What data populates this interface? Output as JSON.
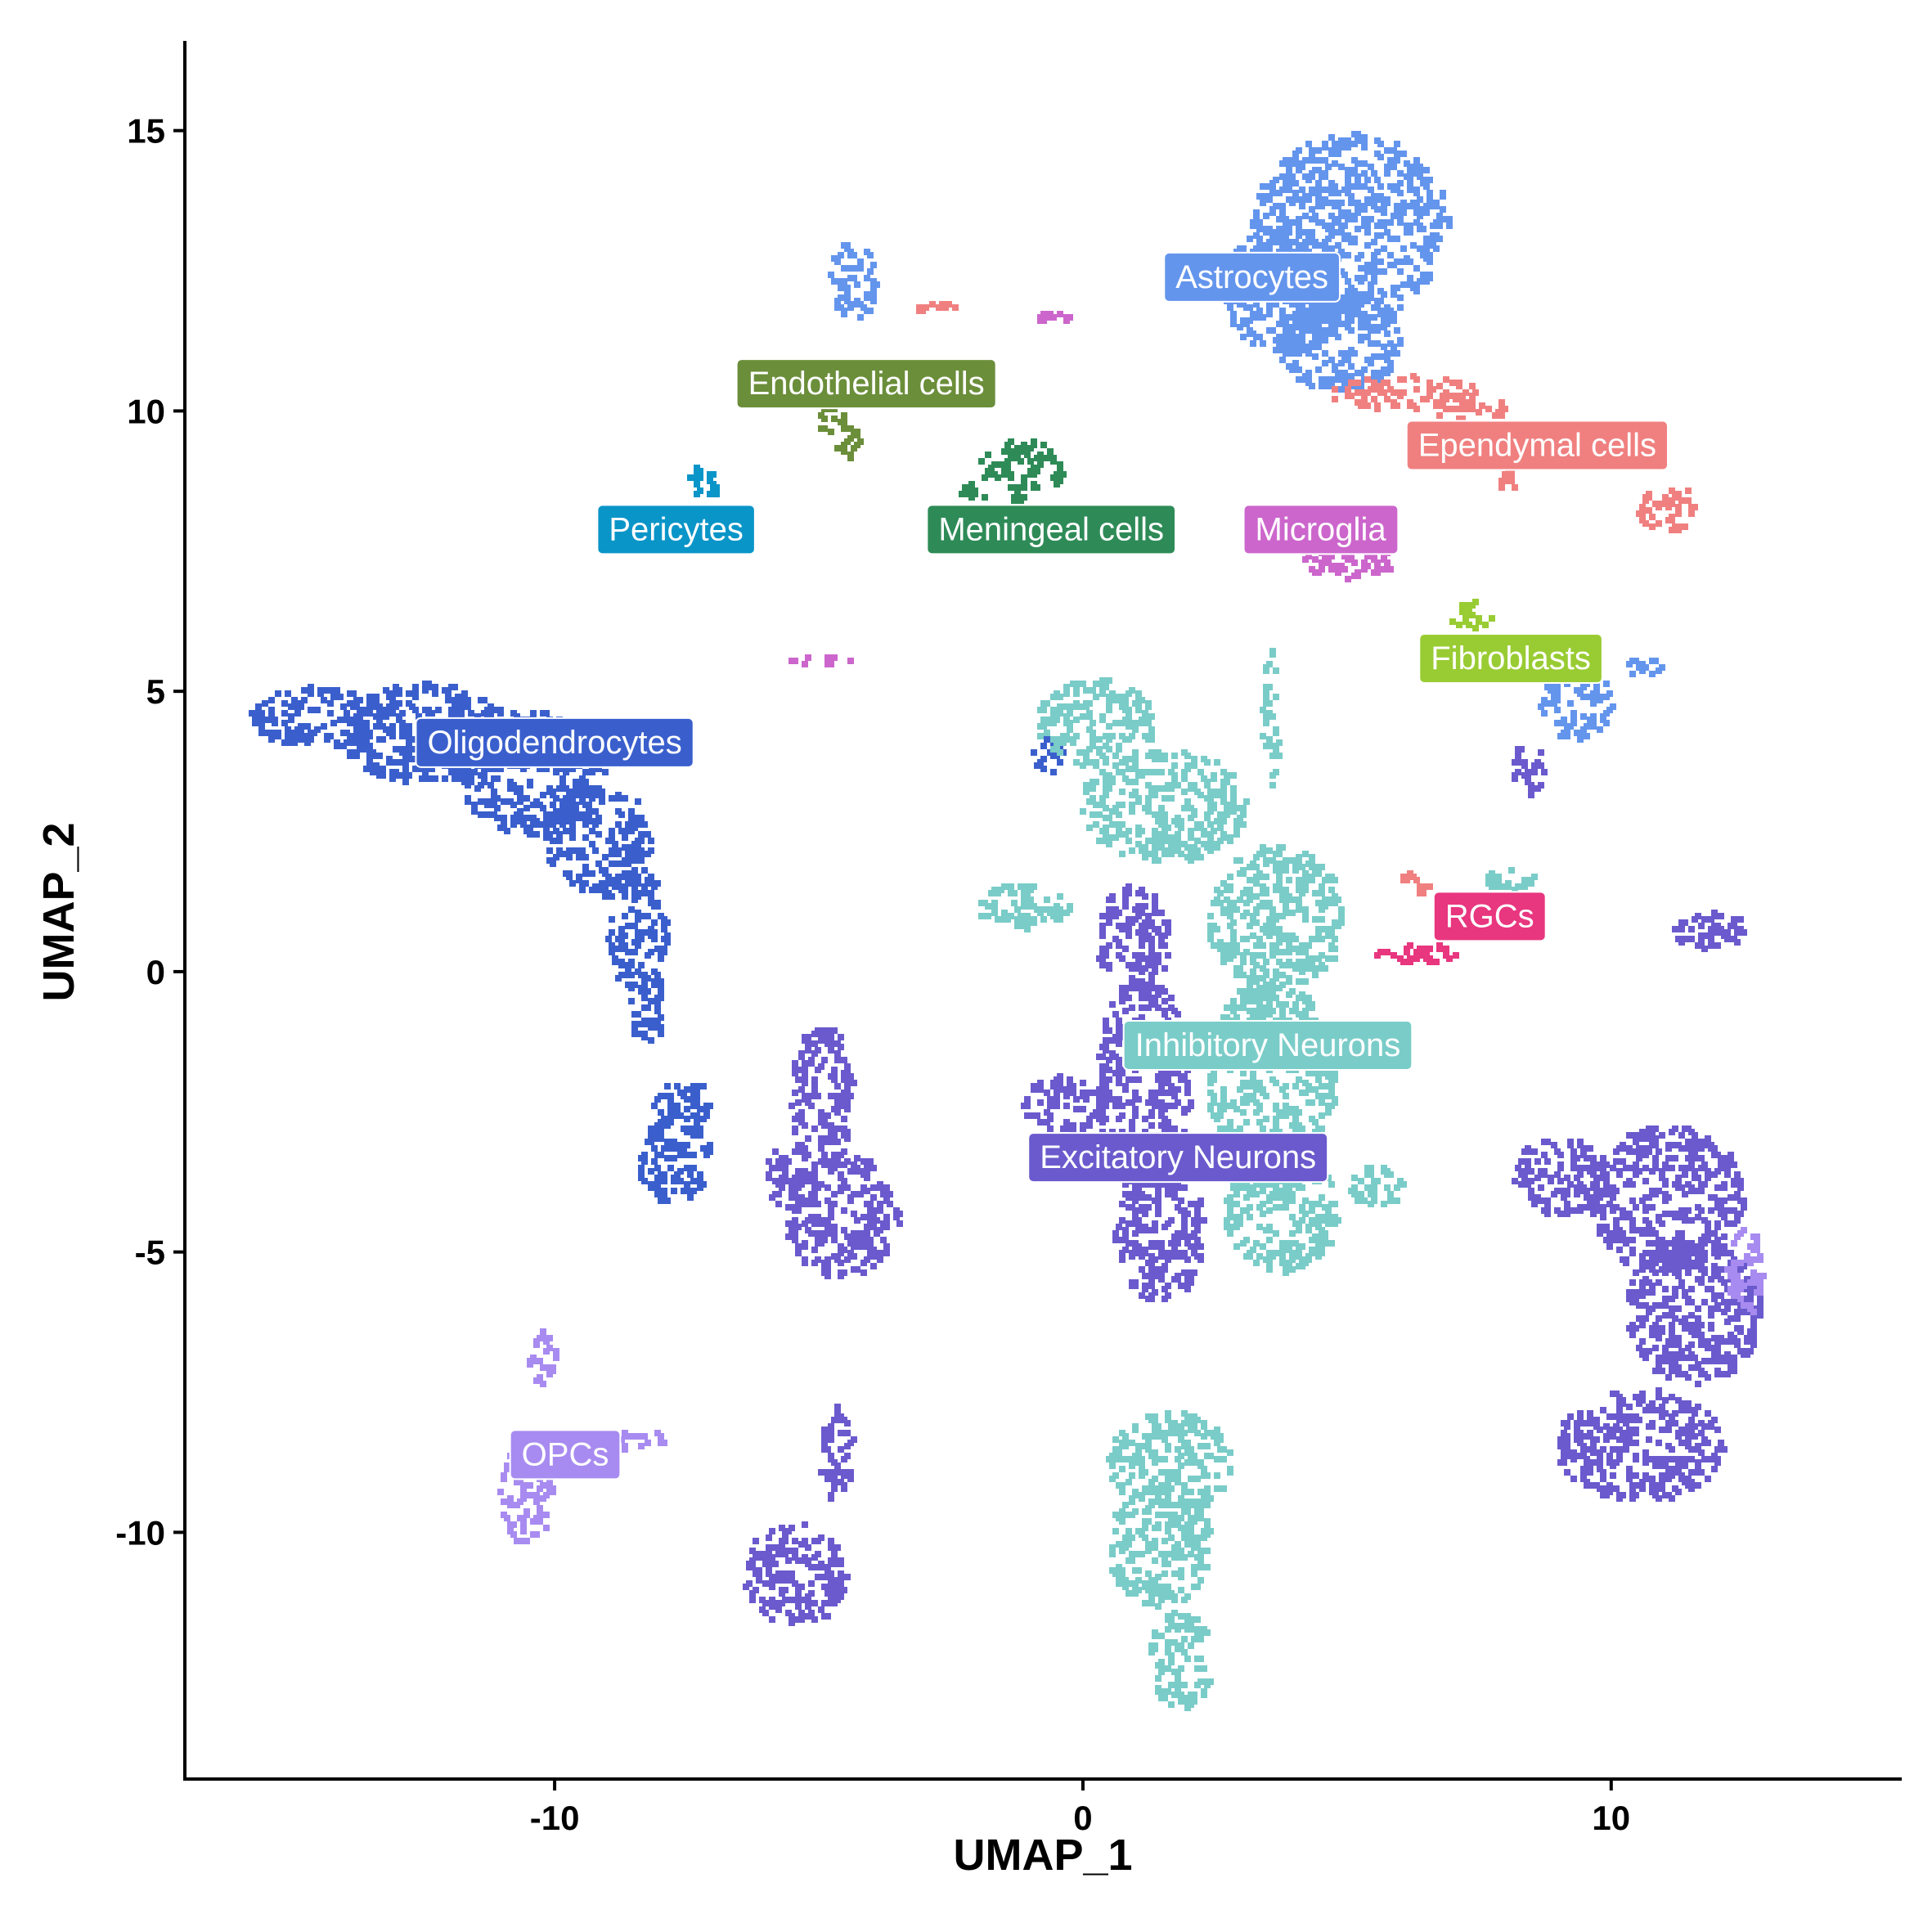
{
  "chart_data": {
    "type": "scatter",
    "title": "",
    "xlabel": "UMAP_1",
    "ylabel": "UMAP_2",
    "xlim": [
      -17,
      15.5
    ],
    "ylim": [
      -14.4,
      16.6
    ],
    "x_ticks": [
      -10,
      0,
      10
    ],
    "y_ticks": [
      -10,
      -5,
      0,
      5,
      10,
      15
    ],
    "x_tick_labels": [
      "-10",
      "0",
      "10"
    ],
    "y_tick_labels": [
      "-10",
      "-5",
      "0",
      "5",
      "10",
      "15"
    ],
    "grid": false,
    "legend": "none",
    "series": [
      {
        "name": "Astrocytes",
        "color": "#6495ED",
        "label_pos": [
          3.2,
          12.4
        ],
        "blobs": [
          {
            "x": 5.0,
            "y": 13.3,
            "rx": 1.9,
            "ry": 1.7
          },
          {
            "x": 3.8,
            "y": 12.2,
            "rx": 1.2,
            "ry": 1.1
          },
          {
            "x": 4.8,
            "y": 11.3,
            "rx": 1.2,
            "ry": 0.9
          },
          {
            "x": -4.4,
            "y": 12.4,
            "rx": 0.45,
            "ry": 0.7
          },
          {
            "x": 9.3,
            "y": 4.8,
            "rx": 0.7,
            "ry": 0.6
          },
          {
            "x": 10.5,
            "y": 5.5,
            "rx": 0.5,
            "ry": 0.15
          }
        ]
      },
      {
        "name": "Ependymal cells",
        "color": "#F08080",
        "label_pos": [
          8.6,
          9.4
        ],
        "blobs": [
          {
            "x": 6.0,
            "y": 10.4,
            "rx": 1.4,
            "ry": 0.3
          },
          {
            "x": 7.3,
            "y": 10.1,
            "rx": 0.7,
            "ry": 0.2
          },
          {
            "x": 11.0,
            "y": 8.3,
            "rx": 0.6,
            "ry": 0.4
          },
          {
            "x": 8.0,
            "y": 8.8,
            "rx": 0.2,
            "ry": 0.2
          },
          {
            "x": -2.8,
            "y": 11.9,
            "rx": 0.4,
            "ry": 0.08
          },
          {
            "x": 6.2,
            "y": 1.6,
            "rx": 0.3,
            "ry": 0.2
          }
        ]
      },
      {
        "name": "Endothelial cells",
        "color": "#6B8E3A",
        "label_pos": [
          -4.1,
          10.5
        ],
        "blobs": [
          {
            "x": -4.8,
            "y": 10.0,
            "rx": 0.35,
            "ry": 0.35
          },
          {
            "x": -4.5,
            "y": 9.5,
            "rx": 0.25,
            "ry": 0.3
          }
        ]
      },
      {
        "name": "Pericytes",
        "color": "#0A95C8",
        "label_pos": [
          -7.7,
          7.9
        ],
        "blobs": [
          {
            "x": -7.2,
            "y": 8.8,
            "rx": 0.3,
            "ry": 0.3
          }
        ]
      },
      {
        "name": "Meningeal cells",
        "color": "#2E8B57",
        "label_pos": [
          -0.6,
          7.9
        ],
        "blobs": [
          {
            "x": -1.2,
            "y": 9.0,
            "rx": 0.8,
            "ry": 0.55
          },
          {
            "x": -2.2,
            "y": 8.6,
            "rx": 0.3,
            "ry": 0.15
          }
        ]
      },
      {
        "name": "Microglia",
        "color": "#CC66CC",
        "label_pos": [
          4.5,
          7.9
        ],
        "blobs": [
          {
            "x": 5.0,
            "y": 7.4,
            "rx": 0.9,
            "ry": 0.35
          },
          {
            "x": -5.0,
            "y": 5.6,
            "rx": 0.6,
            "ry": 0.1
          },
          {
            "x": -0.6,
            "y": 11.7,
            "rx": 0.3,
            "ry": 0.1
          }
        ]
      },
      {
        "name": "Fibroblasts",
        "color": "#99CC33",
        "label_pos": [
          8.1,
          5.6
        ],
        "blobs": [
          {
            "x": 7.3,
            "y": 6.4,
            "rx": 0.45,
            "ry": 0.25
          }
        ]
      },
      {
        "name": "Oligodendrocytes",
        "color": "#3A5FCD",
        "label_pos": [
          -10.0,
          4.1
        ],
        "blobs": [
          {
            "x": -14.5,
            "y": 4.6,
            "rx": 1.3,
            "ry": 0.55
          },
          {
            "x": -12.5,
            "y": 4.3,
            "rx": 1.6,
            "ry": 0.9
          },
          {
            "x": -10.5,
            "y": 3.6,
            "rx": 1.4,
            "ry": 1.1
          },
          {
            "x": -9.2,
            "y": 2.4,
            "rx": 1.0,
            "ry": 1.0
          },
          {
            "x": -8.5,
            "y": 0.8,
            "rx": 0.6,
            "ry": 1.1
          },
          {
            "x": -8.3,
            "y": -0.6,
            "rx": 0.35,
            "ry": 0.7
          },
          {
            "x": -7.8,
            "y": -3.3,
            "rx": 0.7,
            "ry": 0.8
          },
          {
            "x": -7.6,
            "y": -2.3,
            "rx": 0.6,
            "ry": 0.4
          },
          {
            "x": -0.7,
            "y": 3.9,
            "rx": 0.3,
            "ry": 0.3
          }
        ]
      },
      {
        "name": "Inhibitory Neurons",
        "color": "#7ACCC8",
        "label_pos": [
          3.5,
          -1.3
        ],
        "blobs": [
          {
            "x": 0.2,
            "y": 4.5,
            "rx": 1.1,
            "ry": 0.8
          },
          {
            "x": 1.5,
            "y": 3.0,
            "rx": 1.6,
            "ry": 1.0
          },
          {
            "x": 3.6,
            "y": 1.0,
            "rx": 1.3,
            "ry": 1.3
          },
          {
            "x": 3.5,
            "y": -2.0,
            "rx": 1.2,
            "ry": 2.0
          },
          {
            "x": 3.7,
            "y": -4.2,
            "rx": 1.1,
            "ry": 1.1
          },
          {
            "x": 5.5,
            "y": -3.8,
            "rx": 0.5,
            "ry": 0.4
          },
          {
            "x": -1.2,
            "y": 1.2,
            "rx": 0.9,
            "ry": 0.4
          },
          {
            "x": 3.5,
            "y": 4.6,
            "rx": 0.15,
            "ry": 1.3
          },
          {
            "x": 1.6,
            "y": -8.7,
            "rx": 1.2,
            "ry": 0.9
          },
          {
            "x": 1.4,
            "y": -10.2,
            "rx": 1.0,
            "ry": 1.1
          },
          {
            "x": 1.8,
            "y": -12.2,
            "rx": 0.6,
            "ry": 0.9
          },
          {
            "x": 8.1,
            "y": 1.7,
            "rx": 0.6,
            "ry": 0.2
          }
        ]
      },
      {
        "name": "Excitatory Neurons",
        "color": "#6A5ACD",
        "label_pos": [
          1.8,
          -3.3
        ],
        "blobs": [
          {
            "x": 0.9,
            "y": 0.6,
            "rx": 0.7,
            "ry": 1.0
          },
          {
            "x": 1.1,
            "y": -2.0,
            "rx": 0.9,
            "ry": 2.0
          },
          {
            "x": 1.4,
            "y": -4.6,
            "rx": 0.9,
            "ry": 1.2
          },
          {
            "x": -0.4,
            "y": -2.3,
            "rx": 0.8,
            "ry": 0.5
          },
          {
            "x": -5.0,
            "y": -2.2,
            "rx": 0.6,
            "ry": 1.3
          },
          {
            "x": -4.6,
            "y": -4.3,
            "rx": 1.1,
            "ry": 1.1
          },
          {
            "x": -5.6,
            "y": -3.6,
            "rx": 0.5,
            "ry": 0.6
          },
          {
            "x": -5.5,
            "y": -10.7,
            "rx": 1.0,
            "ry": 0.9
          },
          {
            "x": -4.7,
            "y": -8.6,
            "rx": 0.3,
            "ry": 0.9
          },
          {
            "x": 11.0,
            "y": -4.0,
            "rx": 1.5,
            "ry": 1.3
          },
          {
            "x": 11.5,
            "y": -6.0,
            "rx": 1.3,
            "ry": 1.3
          },
          {
            "x": 10.5,
            "y": -8.4,
            "rx": 1.6,
            "ry": 1.0
          },
          {
            "x": 9.0,
            "y": -3.6,
            "rx": 0.9,
            "ry": 0.7
          },
          {
            "x": 11.8,
            "y": 0.8,
            "rx": 0.7,
            "ry": 0.35
          },
          {
            "x": 8.4,
            "y": 3.7,
            "rx": 0.3,
            "ry": 0.5
          }
        ]
      },
      {
        "name": "OPCs",
        "color": "#A88BF0",
        "label_pos": [
          -9.8,
          -8.6
        ],
        "blobs": [
          {
            "x": -10.6,
            "y": -9.2,
            "rx": 0.5,
            "ry": 1.0
          },
          {
            "x": -10.3,
            "y": -6.8,
            "rx": 0.3,
            "ry": 0.5
          },
          {
            "x": -8.5,
            "y": -8.3,
            "rx": 0.6,
            "ry": 0.15
          },
          {
            "x": 12.5,
            "y": -5.3,
            "rx": 0.35,
            "ry": 0.8
          }
        ]
      },
      {
        "name": "RGCs",
        "color": "#E8367F",
        "label_pos": [
          7.7,
          1.0
        ],
        "blobs": [
          {
            "x": 6.3,
            "y": 0.35,
            "rx": 0.85,
            "ry": 0.18
          }
        ]
      }
    ]
  }
}
